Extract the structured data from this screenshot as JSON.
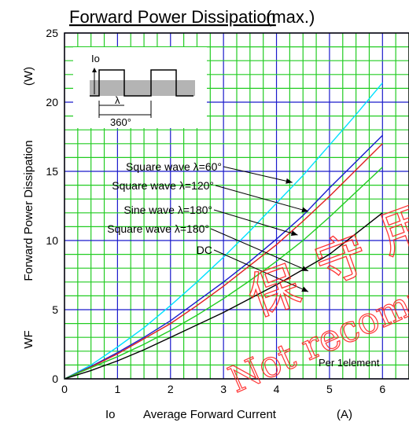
{
  "chart_data": {
    "type": "line",
    "title": "Forward Power Dissipation",
    "title_suffix": "(max.)",
    "xlabel_symbol": "Io",
    "xlabel": "Average Forward Current",
    "xlabel_unit": "(A)",
    "ylabel_symbol": "WF",
    "ylabel": "Forward Power Dissipation",
    "ylabel_unit": "(W)",
    "xlim": [
      0,
      6.5
    ],
    "ylim": [
      0,
      25
    ],
    "x_ticks": [
      "0",
      "1",
      "2",
      "3",
      "4",
      "5",
      "6"
    ],
    "y_ticks": [
      "0",
      "5",
      "10",
      "15",
      "20",
      "25"
    ],
    "grid": true,
    "grid_colors": {
      "major": "#1a1acc",
      "minor": "#22cc22"
    },
    "series": [
      {
        "name": "Square wave λ=60°",
        "color": "#00e0ff",
        "x": [
          0,
          0.5,
          1,
          1.5,
          2,
          2.5,
          3,
          3.5,
          4,
          4.5,
          5,
          5.5,
          6
        ],
        "y": [
          0,
          1.0,
          2.3,
          3.7,
          5.3,
          7.0,
          8.8,
          10.7,
          12.7,
          14.7,
          16.9,
          19.1,
          21.4
        ]
      },
      {
        "name": "Square wave λ=120°",
        "color": "#1a1ad0",
        "x": [
          0,
          0.5,
          1,
          1.5,
          2,
          2.5,
          3,
          3.5,
          4,
          4.5,
          5,
          5.5,
          6
        ],
        "y": [
          0,
          0.9,
          1.9,
          3.0,
          4.2,
          5.6,
          7.0,
          8.5,
          10.1,
          11.8,
          13.8,
          15.7,
          17.6
        ]
      },
      {
        "name": "Sine wave λ=180°",
        "color": "#e02020",
        "x": [
          0,
          0.5,
          1,
          1.5,
          2,
          2.5,
          3,
          3.5,
          4,
          4.5,
          5,
          5.5,
          6
        ],
        "y": [
          0,
          0.85,
          1.8,
          2.9,
          4.0,
          5.3,
          6.7,
          8.2,
          9.7,
          11.4,
          13.2,
          15.1,
          17.0
        ]
      },
      {
        "name": "Square wave λ=180°",
        "color": "#22cc22",
        "x": [
          0,
          0.5,
          1,
          1.5,
          2,
          2.5,
          3,
          3.5,
          4,
          4.5,
          5,
          5.5,
          6
        ],
        "y": [
          0,
          0.8,
          1.6,
          2.5,
          3.5,
          4.6,
          5.8,
          7.1,
          8.5,
          10.0,
          11.7,
          13.5,
          15.3
        ]
      },
      {
        "name": "DC",
        "color": "#000000",
        "x": [
          0,
          0.5,
          1,
          1.5,
          2,
          2.5,
          3,
          3.5,
          4,
          4.5,
          5,
          5.5,
          6
        ],
        "y": [
          0,
          0.6,
          1.3,
          2.1,
          3.0,
          3.9,
          4.8,
          5.8,
          6.8,
          7.9,
          9.0,
          10.5,
          12.0
        ]
      }
    ],
    "annotations": {
      "per_element": "Per 1element",
      "inset_io": "Io",
      "inset_lambda": "λ",
      "inset_period": "360°"
    },
    "watermark": {
      "chars": [
        "保",
        "守",
        "用"
      ],
      "text": "Not recommended",
      "color": "#ff2020"
    }
  }
}
